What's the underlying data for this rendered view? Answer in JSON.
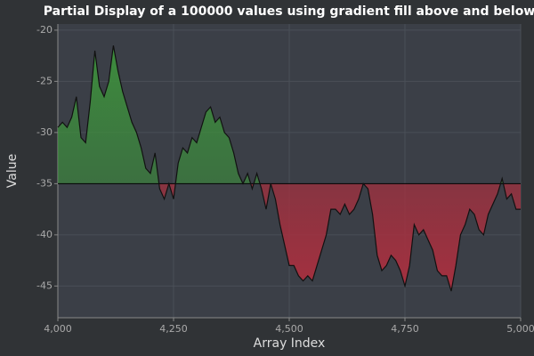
{
  "chart_data": {
    "type": "line",
    "title": "Partial Display of a 100000 values using gradient fill above and below",
    "x_label": "Array Index",
    "y_label": "Value",
    "x": [
      4000,
      4010,
      4020,
      4030,
      4040,
      4050,
      4060,
      4070,
      4080,
      4090,
      4100,
      4110,
      4120,
      4130,
      4140,
      4150,
      4160,
      4170,
      4180,
      4190,
      4200,
      4210,
      4220,
      4230,
      4240,
      4250,
      4260,
      4270,
      4280,
      4290,
      4300,
      4310,
      4320,
      4330,
      4340,
      4350,
      4360,
      4370,
      4380,
      4390,
      4400,
      4410,
      4420,
      4430,
      4440,
      4450,
      4460,
      4470,
      4480,
      4490,
      4500,
      4510,
      4520,
      4530,
      4540,
      4550,
      4560,
      4570,
      4580,
      4590,
      4600,
      4610,
      4620,
      4630,
      4640,
      4650,
      4660,
      4670,
      4680,
      4690,
      4700,
      4710,
      4720,
      4730,
      4740,
      4750,
      4760,
      4770,
      4780,
      4790,
      4800,
      4810,
      4820,
      4830,
      4840,
      4850,
      4860,
      4870,
      4880,
      4890,
      4900,
      4910,
      4920,
      4930,
      4940,
      4950,
      4960,
      4970,
      4980,
      4990,
      5000
    ],
    "series": [
      {
        "color": "#111111",
        "values": [
          -29.5,
          -29,
          -29.5,
          -28.5,
          -26.5,
          -30.5,
          -31,
          -27,
          -22,
          -25.5,
          -26.5,
          -25,
          -21.5,
          -24,
          -26,
          -27.5,
          -29,
          -30,
          -31.5,
          -33.5,
          -34,
          -32,
          -35.5,
          -36.5,
          -35,
          -36.5,
          -33,
          -31.5,
          -32,
          -30.5,
          -31,
          -29.5,
          -28,
          -27.5,
          -29,
          -28.5,
          -30,
          -30.5,
          -32,
          -34,
          -35,
          -34,
          -35.5,
          -34,
          -35.5,
          -37.5,
          -35,
          -36.5,
          -39,
          -41,
          -43,
          -43,
          -44,
          -44.5,
          -44,
          -44.5,
          -43,
          -41.5,
          -40,
          -37.5,
          -37.5,
          -38,
          -37,
          -38,
          -37.5,
          -36.5,
          -35,
          -35.5,
          -38,
          -42,
          -43.5,
          -43,
          -42,
          -42.5,
          -43.5,
          -45,
          -43,
          -39,
          -40,
          -39.5,
          -40.5,
          -41.5,
          -43.5,
          -44,
          -44,
          -45.5,
          -43,
          -40,
          -39,
          -37.5,
          -38,
          -39.5,
          -40,
          -38,
          -37,
          -36,
          -34.5,
          -36.5,
          -36,
          -37.5,
          -37.5
        ]
      }
    ],
    "threshold": -35,
    "above_color": "#3d8c3d",
    "below_color": "#a5303f",
    "xlim": [
      4000,
      5000
    ],
    "xticks": [
      {
        "value": 4000,
        "label": "4,000"
      },
      {
        "value": 4250,
        "label": "4,250"
      },
      {
        "value": 4500,
        "label": "4,500"
      },
      {
        "value": 4750,
        "label": "4,750"
      },
      {
        "value": 5000,
        "label": "5,000"
      }
    ],
    "ylim": [
      -48.1,
      -19.4
    ],
    "yticks": [
      -20,
      -25,
      -30,
      -35,
      -40,
      -45
    ],
    "grid": true
  }
}
